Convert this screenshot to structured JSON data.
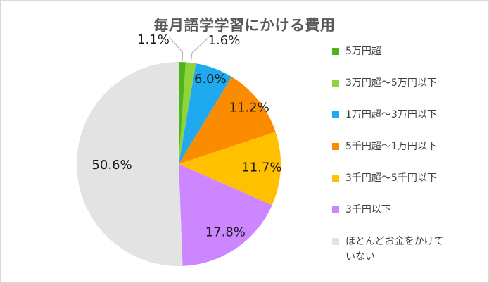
{
  "chart_data": {
    "type": "pie",
    "title": "毎月語学学習にかける費用",
    "start_angle_deg": 0,
    "direction": "clockwise",
    "legend_position": "right",
    "slices": [
      {
        "label": "5万円超",
        "value": 1.1,
        "display": "1.1%",
        "color": "#4fb61a"
      },
      {
        "label": "3万円超～5万円以下",
        "value": 1.6,
        "display": "1.6%",
        "color": "#8fd43a"
      },
      {
        "label": "1万円超～3万円以下",
        "value": 6.0,
        "display": "6.0%",
        "color": "#1fa9ef"
      },
      {
        "label": "5千円超～1万円以下",
        "value": 11.2,
        "display": "11.2%",
        "color": "#fb8c00"
      },
      {
        "label": "3千円超～5千円以下",
        "value": 11.7,
        "display": "11.7%",
        "color": "#ffc000"
      },
      {
        "label": "3千円以下",
        "value": 17.8,
        "display": "17.8%",
        "color": "#cc86ff"
      },
      {
        "label": "ほとんどお金をかけていない",
        "value": 50.6,
        "display": "50.6%",
        "color": "#e3e3e3"
      }
    ]
  }
}
